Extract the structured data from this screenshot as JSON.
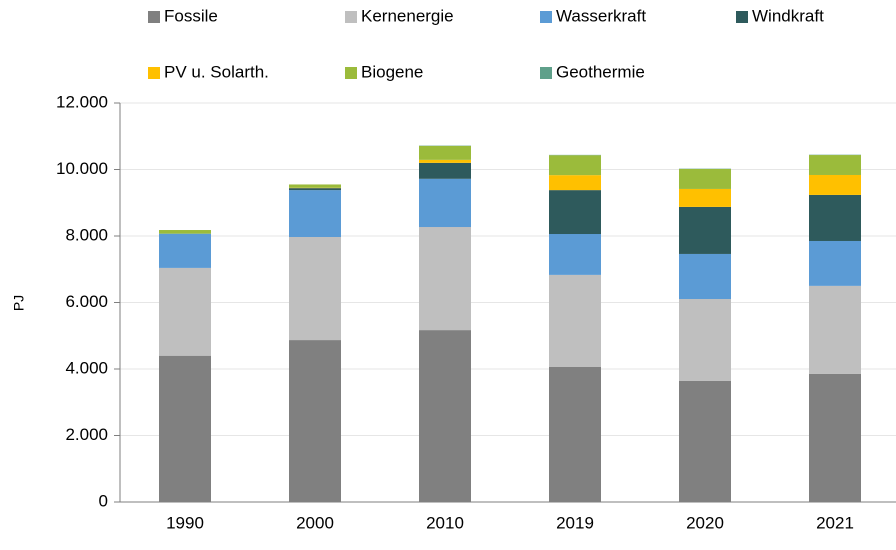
{
  "chart_data": {
    "type": "stacked_bar",
    "y_label": "PJ",
    "categories": [
      "1990",
      "2000",
      "2010",
      "2019",
      "2020",
      "2021"
    ],
    "series": [
      {
        "name": "Fossile",
        "color": "#808080",
        "values": [
          4400,
          4870,
          5170,
          4060,
          3640,
          3850
        ]
      },
      {
        "name": "Kernenergie",
        "color": "#bfbfbf",
        "values": [
          2640,
          3100,
          3100,
          2770,
          2465,
          2650
        ]
      },
      {
        "name": "Wasserkraft",
        "color": "#5b9bd5",
        "values": [
          1030,
          1410,
          1450,
          1230,
          1355,
          1350
        ]
      },
      {
        "name": "Windkraft",
        "color": "#2e5a5c",
        "values": [
          0,
          60,
          480,
          1320,
          1415,
          1385
        ]
      },
      {
        "name": "PV u. Solarth.",
        "color": "#ffc000",
        "values": [
          0,
          10,
          90,
          450,
          540,
          600
        ]
      },
      {
        "name": "Biogene",
        "color": "#9bbb3b",
        "values": [
          110,
          100,
          420,
          600,
          600,
          600
        ]
      },
      {
        "name": "Geothermie",
        "color": "#5fa08a",
        "values": [
          0,
          0,
          10,
          10,
          10,
          10
        ]
      }
    ],
    "ylim": [
      0,
      12000
    ],
    "yticks": [
      0,
      {
        "value": 2000,
        "label": "2.000"
      },
      {
        "value": 4000,
        "label": "4.000"
      },
      {
        "value": 6000,
        "label": "6.000"
      },
      {
        "value": 8000,
        "label": "8.000"
      },
      {
        "value": 10000,
        "label": "10.000"
      },
      {
        "value": 12000,
        "label": "12.000"
      }
    ],
    "grid": true
  }
}
